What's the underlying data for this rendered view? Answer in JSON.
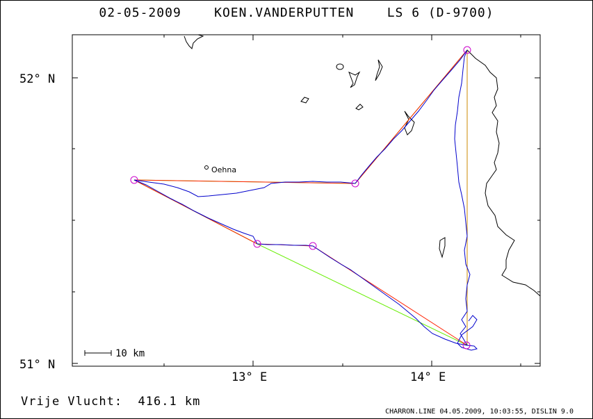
{
  "header": {
    "title": "02-05-2009    KOEN.VANDERPUTTEN    LS 6 (D-9700)"
  },
  "axes": {
    "lat_labels": [
      "52° N",
      "51° N"
    ],
    "lon_labels": [
      "13° E",
      "14° E"
    ]
  },
  "map": {
    "place_label": "Oehna",
    "scale_label": "10 km"
  },
  "footer": {
    "distance_text": "Vrije Vlucht:  416.1 km",
    "program_text": "CHARRON.LINE 04.05.2009, 10:03:55, DISLIN 9.0"
  },
  "colors": {
    "track": "#0000cc",
    "task_line": "#ff0000",
    "optimized_line": "#66ee00",
    "turnpoint": "#cc00cc",
    "border": "#000000"
  }
}
